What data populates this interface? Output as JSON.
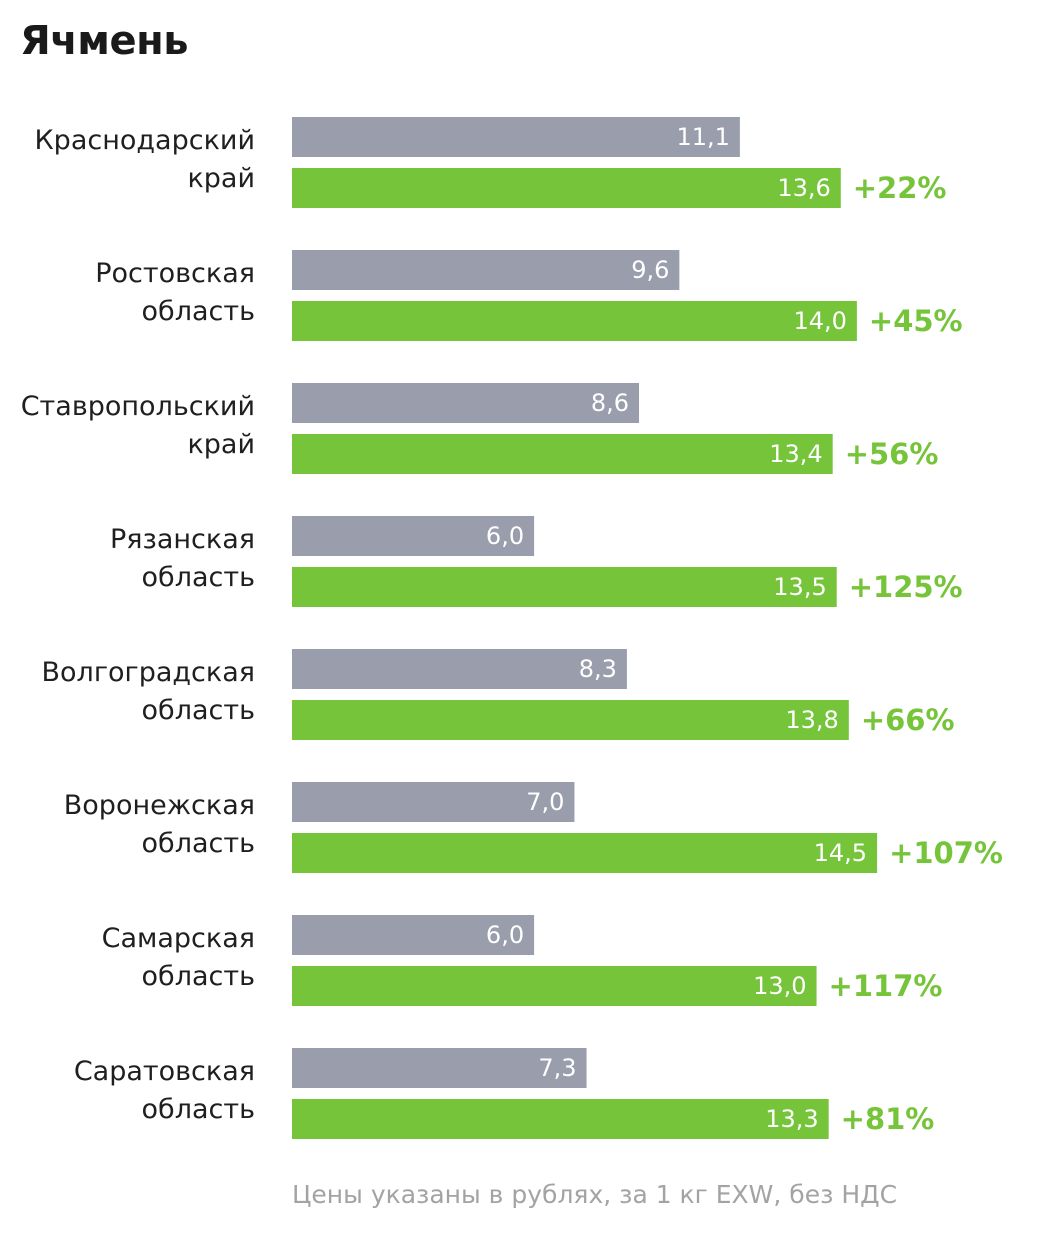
{
  "title": "Ячмень",
  "footnote": "Цены указаны в рублях, за 1 кг EXW, без НДС",
  "colors": {
    "previous": "#9a9dab",
    "current": "#76c43a",
    "change_text": "#76c43a",
    "label_text": "#1f1f1f",
    "footnote_text": "#a3a3a3"
  },
  "chart_data": {
    "type": "bar",
    "orientation": "horizontal",
    "title": "Ячмень",
    "categories": [
      [
        "Краснодарский",
        "край"
      ],
      [
        "Ростовская",
        "область"
      ],
      [
        "Ставропольский",
        "край"
      ],
      [
        "Рязанская",
        "область"
      ],
      [
        "Волгоградская",
        "область"
      ],
      [
        "Воронежская",
        "область"
      ],
      [
        "Самарская",
        "область"
      ],
      [
        "Саратовская",
        "область"
      ]
    ],
    "series": [
      {
        "values": [
          11.1,
          9.6,
          8.6,
          6.0,
          8.3,
          7.0,
          6.0,
          7.3
        ],
        "labels": [
          "11,1",
          "9,6",
          "8,6",
          "6,0",
          "8,3",
          "7,0",
          "6,0",
          "7,3"
        ]
      },
      {
        "values": [
          13.6,
          14.0,
          13.4,
          13.5,
          13.8,
          14.5,
          13.0,
          13.3
        ],
        "labels": [
          "13,6",
          "14,0",
          "13,4",
          "13,5",
          "13,8",
          "14,5",
          "13,0",
          "13,3"
        ]
      }
    ],
    "changes": [
      "+22%",
      "+45%",
      "+56%",
      "+125%",
      "+66%",
      "+107%",
      "+117%",
      "+81%"
    ],
    "xlim": [
      0,
      14.5
    ],
    "grid": false,
    "legend": "none"
  }
}
